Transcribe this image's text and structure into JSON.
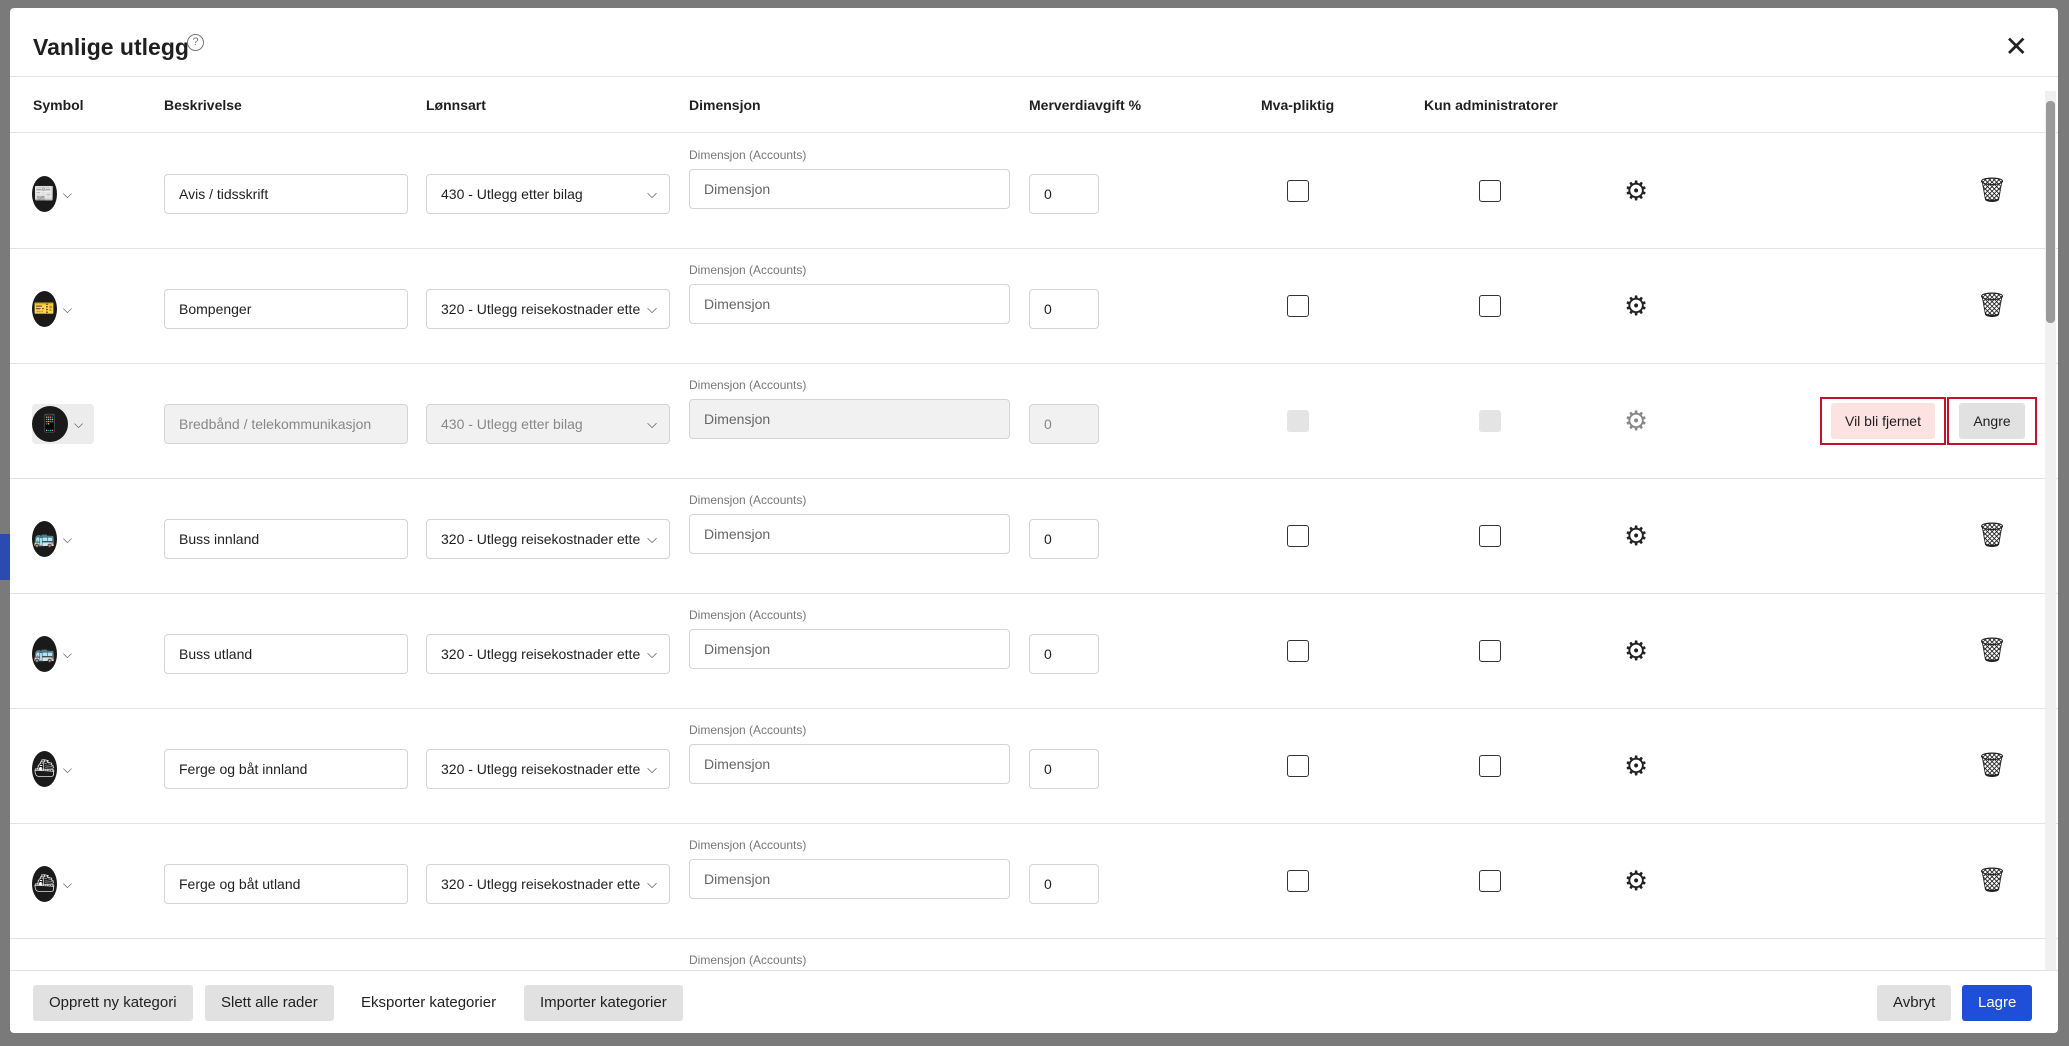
{
  "title": "Vanlige utlegg",
  "columns": {
    "symbol": "Symbol",
    "description": "Beskrivelse",
    "wage_type": "Lønnsart",
    "dimension": "Dimensjon",
    "vat": "Merverdiavgift %",
    "vat_liable": "Mva-pliktig",
    "admin_only": "Kun administratorer"
  },
  "dimension_label": "Dimensjon (Accounts)",
  "dimension_placeholder": "Dimensjon",
  "rows": [
    {
      "icon": "newspaper-icon",
      "glyph": "📰",
      "description": "Avis / tidsskrift",
      "wage_type": "430 - Utlegg etter bilag",
      "vat": "0",
      "removed": false
    },
    {
      "icon": "ticket-icon",
      "glyph": "🎫",
      "description": "Bompenger",
      "wage_type": "320 - Utlegg reisekostnader ette",
      "vat": "0",
      "removed": false
    },
    {
      "icon": "phone-icon",
      "glyph": "📱",
      "description": "Bredbånd / telekommunikasjon",
      "wage_type": "430 - Utlegg etter bilag",
      "vat": "0",
      "removed": true
    },
    {
      "icon": "bus-icon",
      "glyph": "🚌",
      "description": "Buss innland",
      "wage_type": "320 - Utlegg reisekostnader ette",
      "vat": "0",
      "removed": false
    },
    {
      "icon": "bus-icon",
      "glyph": "🚌",
      "description": "Buss utland",
      "wage_type": "320 - Utlegg reisekostnader ette",
      "vat": "0",
      "removed": false
    },
    {
      "icon": "ferry-icon",
      "glyph": "⛴",
      "description": "Ferge og båt innland",
      "wage_type": "320 - Utlegg reisekostnader ette",
      "vat": "0",
      "removed": false
    },
    {
      "icon": "ferry-icon",
      "glyph": "⛴",
      "description": "Ferge og båt utland",
      "wage_type": "320 - Utlegg reisekostnader ette",
      "vat": "0",
      "removed": false
    }
  ],
  "removed": {
    "status": "Vil bli fjernet",
    "undo": "Angre"
  },
  "footer": {
    "create": "Opprett ny kategori",
    "delete_all": "Slett alle rader",
    "export": "Eksporter kategorier",
    "import": "Importer kategorier",
    "cancel": "Avbryt",
    "save": "Lagre"
  },
  "colors": {
    "primary": "#1f4fd8",
    "removed_bg": "#fde2e2",
    "highlight": "#c8102e"
  }
}
